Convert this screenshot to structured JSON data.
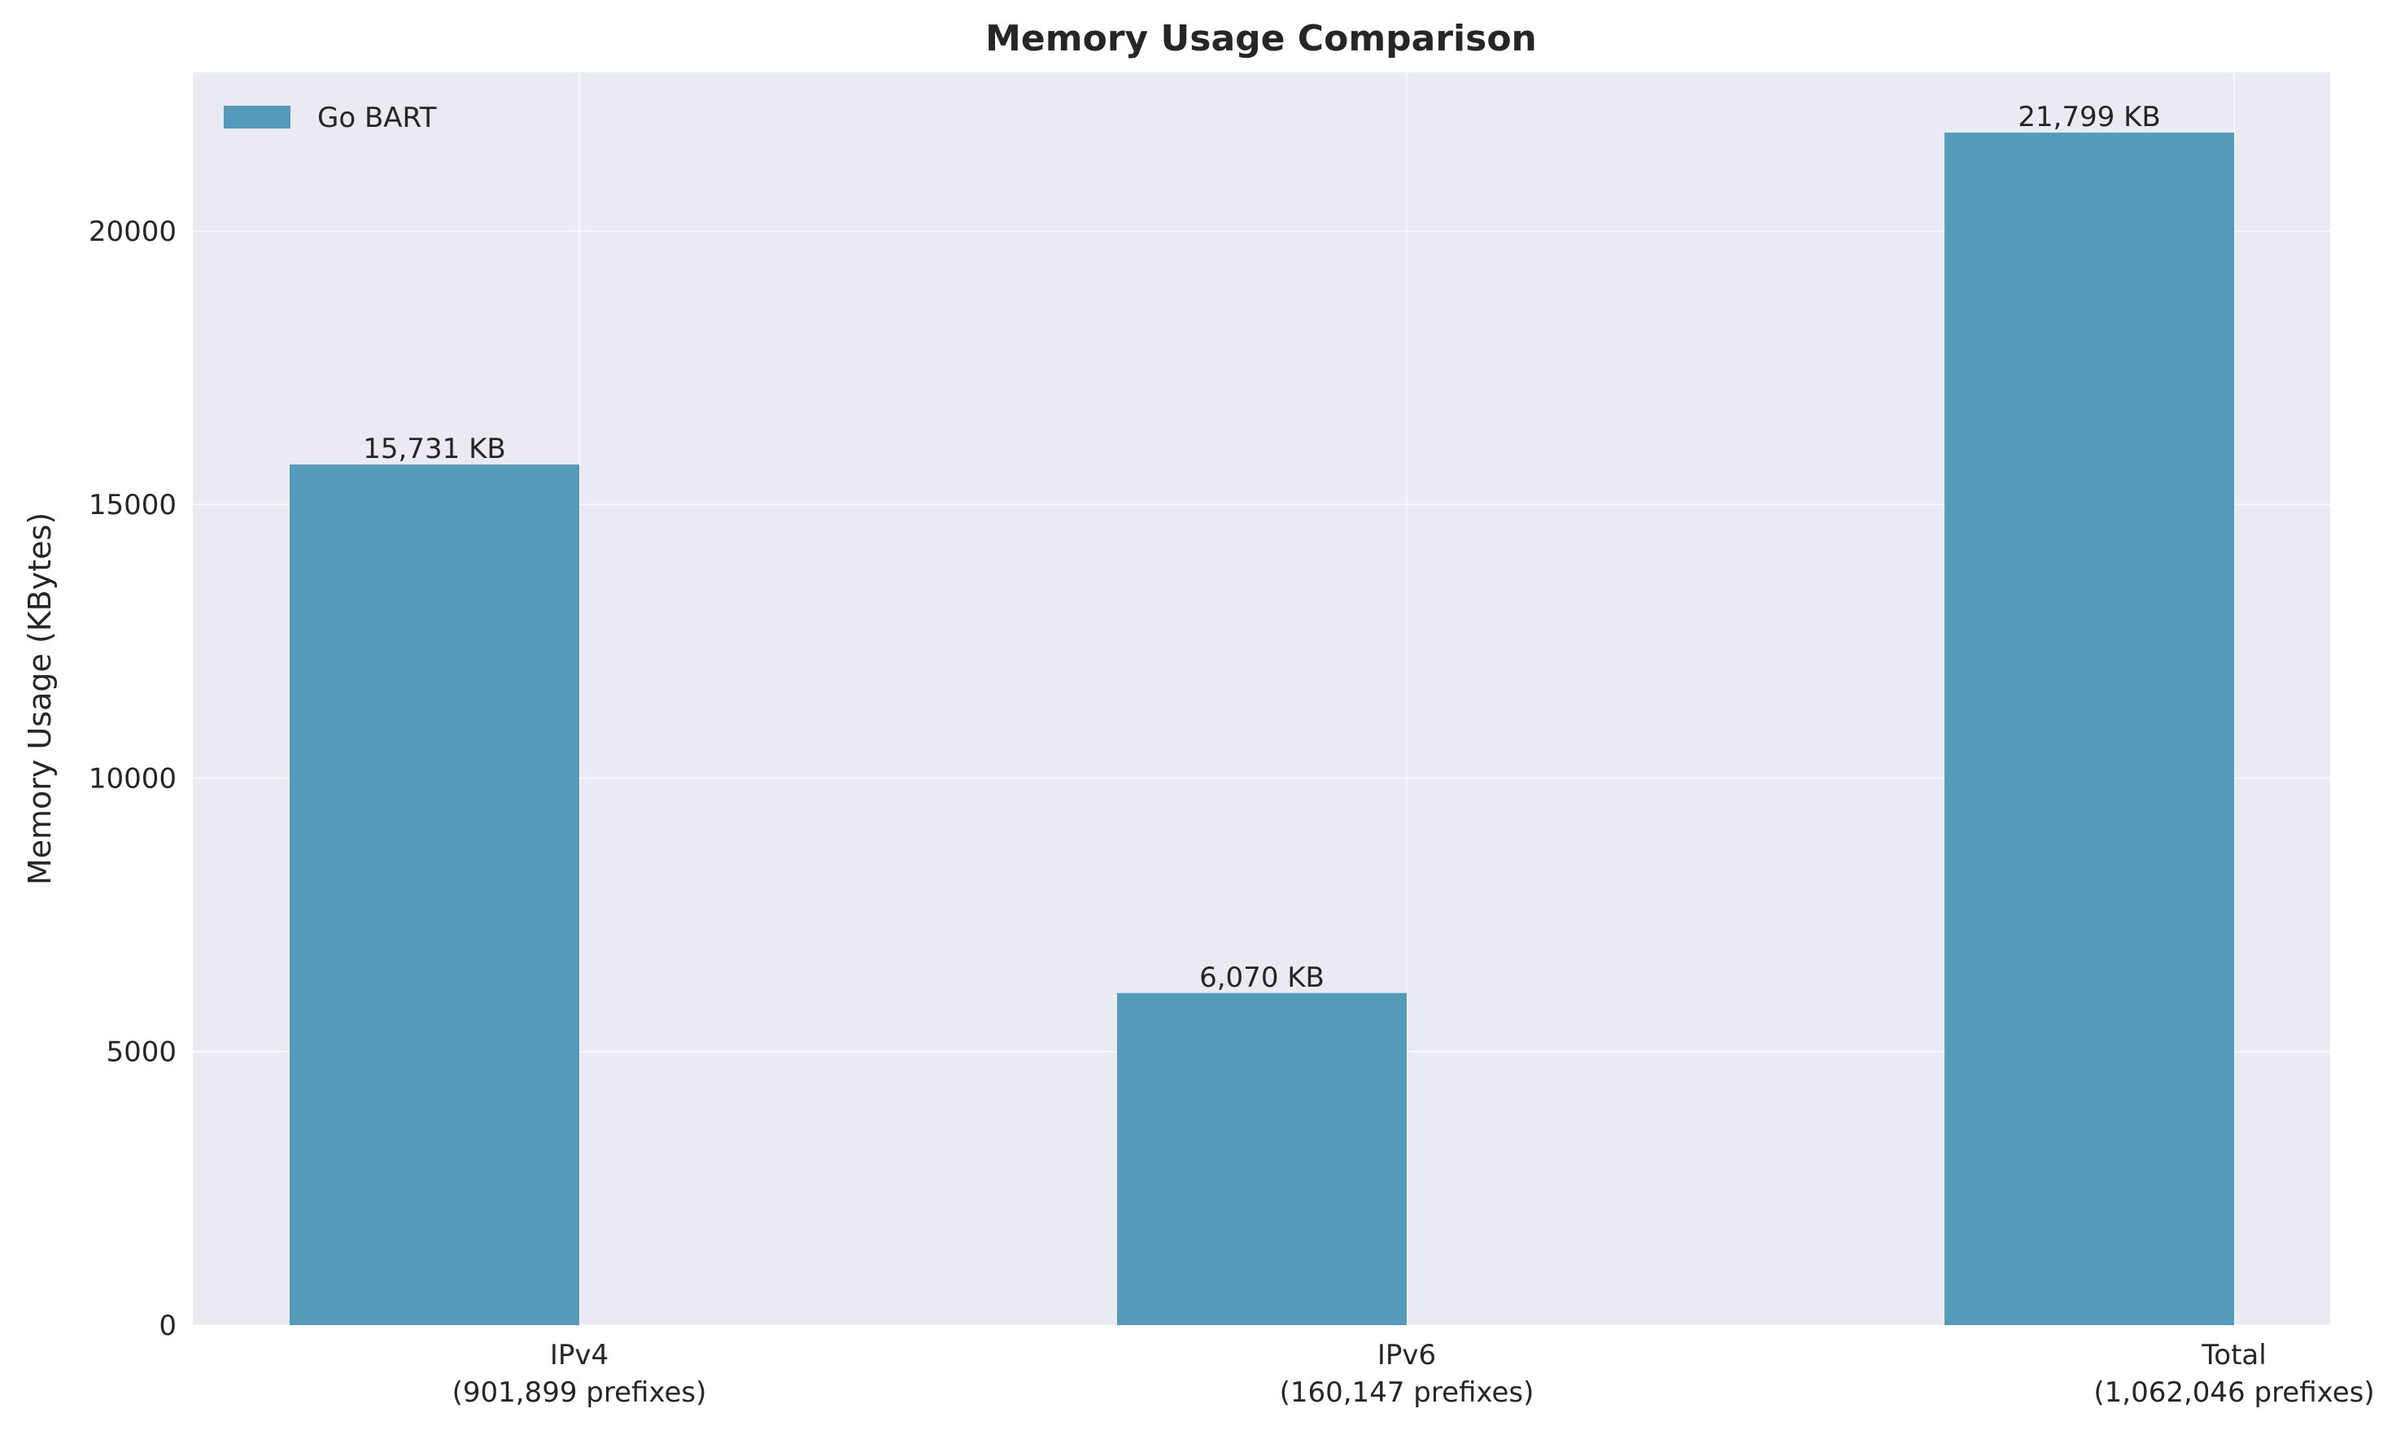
{
  "chart_data": {
    "type": "bar",
    "title": "Memory Usage Comparison",
    "ylabel": "Memory Usage (KBytes)",
    "xlabel": "",
    "ylim": [
      0,
      22899
    ],
    "yticks": [
      0,
      5000,
      10000,
      15000,
      20000
    ],
    "grid": true,
    "legend_placement": "top-left",
    "categories": [
      [
        "IPv4",
        "(901,899 prefixes)"
      ],
      [
        "IPv6",
        "(160,147 prefixes)"
      ],
      [
        "Total",
        "(1,062,046 prefixes)"
      ]
    ],
    "series": [
      {
        "name": "Go BART",
        "color": "#549bb9",
        "values": [
          15731,
          6070,
          21799
        ],
        "data_labels": [
          "15,731 KB",
          "6,070 KB",
          "21,799 KB"
        ]
      }
    ]
  }
}
